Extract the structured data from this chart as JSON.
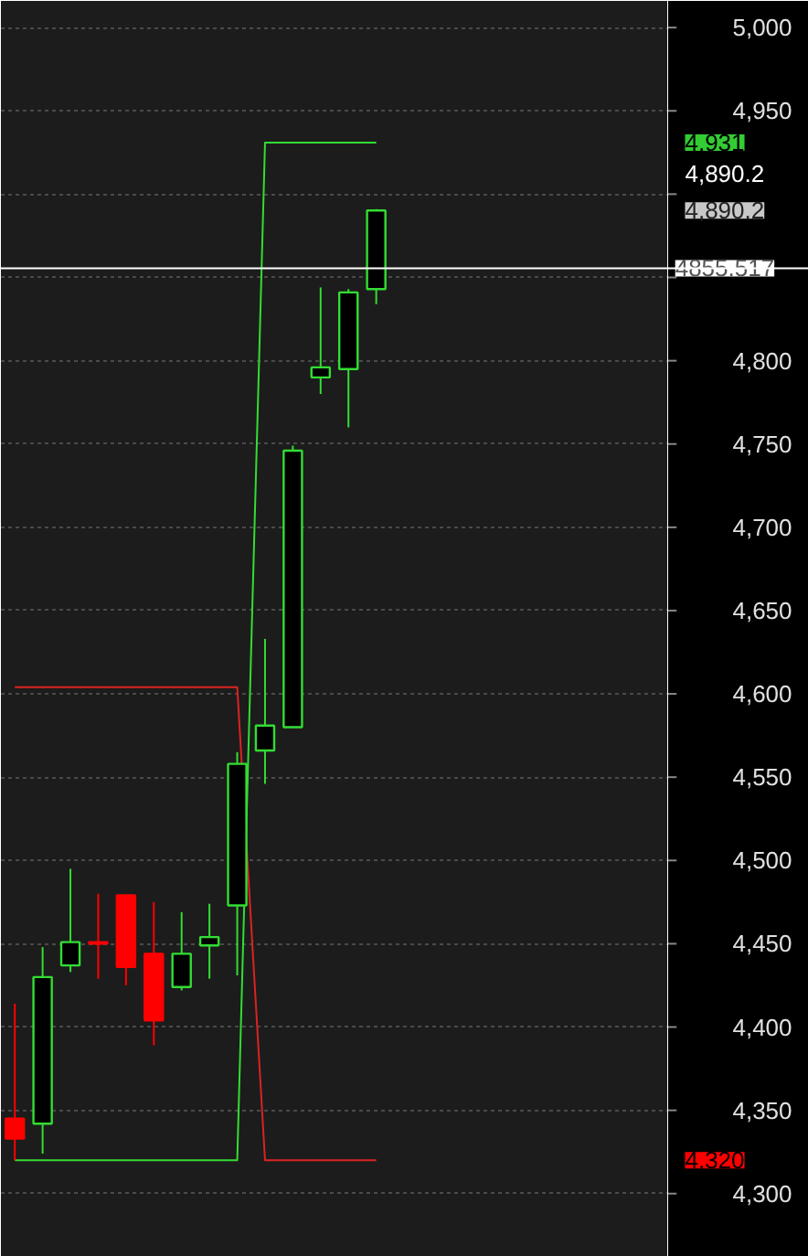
{
  "chart_data": {
    "type": "candlestick",
    "categories": [
      null,
      null,
      null,
      null,
      null,
      null,
      null,
      null,
      null,
      null,
      null,
      null,
      null,
      null,
      null,
      null,
      null,
      null,
      null,
      null,
      null,
      null,
      null,
      null
    ],
    "ohlc": [
      [
        4345,
        4414,
        4320,
        4333
      ],
      [
        4342,
        4448,
        4324,
        4430
      ],
      [
        4437,
        4495,
        4433,
        4451
      ],
      [
        4451,
        4480,
        4429,
        4450
      ],
      [
        4479,
        4479,
        4425,
        4436
      ],
      [
        4444,
        4475,
        4389,
        4404
      ],
      [
        4424,
        4469,
        4422,
        4444
      ],
      [
        4449,
        4474,
        4429,
        4454
      ],
      [
        4473,
        4565,
        4431,
        4558
      ],
      [
        4566,
        4633,
        4546,
        4581
      ],
      [
        4580,
        4749,
        4580,
        4746
      ],
      [
        4790,
        4844,
        4780,
        4796
      ],
      [
        4795,
        4843,
        4760,
        4841
      ],
      [
        4843,
        4891,
        4834,
        4890.2
      ],
      null,
      null,
      null,
      null,
      null,
      null,
      null,
      null,
      null,
      null
    ],
    "colors": [
      "#ff0000",
      "#33dd33",
      "#33dd33",
      "#ff0000",
      "#ff0000",
      "#ff0000",
      "#33dd33",
      "#33dd33",
      "#33dd33",
      "#33dd33",
      "#33dd33",
      "#33dd33",
      "#33dd33",
      "#33dd33",
      null,
      null,
      null,
      null,
      null,
      null,
      null,
      null,
      null,
      null
    ],
    "series": [
      {
        "type": "line",
        "color": "#33dd33",
        "values": [
          4320,
          4320,
          4320,
          4320,
          4320,
          4320,
          4320,
          4320,
          4320,
          4931,
          4931,
          4931,
          4931,
          4931,
          null,
          null,
          null,
          null,
          null,
          null,
          null,
          null,
          null,
          null
        ]
      },
      {
        "type": "line",
        "color": "#dd2222",
        "values": [
          4604,
          4604,
          4604,
          4604,
          4604,
          4604,
          4604,
          4604,
          4604,
          4320,
          4320,
          4320,
          4320,
          4320,
          null,
          null,
          null,
          null,
          null,
          null,
          null,
          null,
          null,
          null
        ]
      }
    ],
    "ylim": [
      4262,
      5016
    ],
    "yticks": [
      {
        "value": 4300,
        "label": "4,300"
      },
      {
        "value": 4350,
        "label": "4,350"
      },
      {
        "value": 4400,
        "label": "4,400"
      },
      {
        "value": 4450,
        "label": "4,450"
      },
      {
        "value": 4500,
        "label": "4,500"
      },
      {
        "value": 4550,
        "label": "4,550"
      },
      {
        "value": 4600,
        "label": "4,600"
      },
      {
        "value": 4650,
        "label": "4,650"
      },
      {
        "value": 4700,
        "label": "4,700"
      },
      {
        "value": 4750,
        "label": "4,750"
      },
      {
        "value": 4800,
        "label": "4,800"
      },
      {
        "value": 4850,
        "label": null
      },
      {
        "value": 4900,
        "label": null
      },
      {
        "value": 4950,
        "label": "4,950"
      },
      {
        "value": 5000,
        "label": "5,000"
      }
    ],
    "ref_lines": [
      {
        "axis": "y",
        "value": 4855.517,
        "label": "4855.517",
        "color": "#ffffff"
      }
    ],
    "annotations": [
      "4,931",
      "4,890.2",
      "4,890.2",
      "4,320"
    ],
    "grid": "y",
    "tick_labels": "y"
  }
}
